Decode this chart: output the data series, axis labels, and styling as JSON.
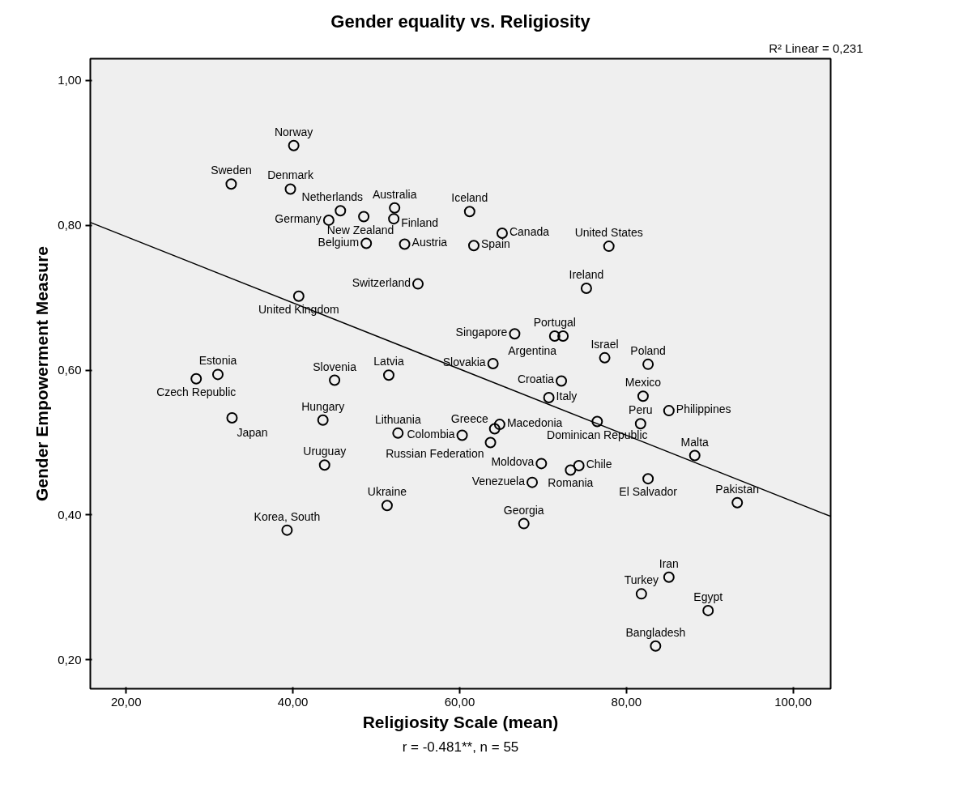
{
  "chart_data": {
    "type": "scatter",
    "title": "Gender equality vs. Religiosity",
    "xlabel": "Religiosity Scale (mean)",
    "ylabel": "Gender Empowerment Measure",
    "annotations": [
      "R² Linear = 0,231",
      "r = -0.481**, n = 55"
    ],
    "xlim": [
      15.7,
      104.5
    ],
    "ylim": [
      0.16,
      1.03
    ],
    "xticks": [
      {
        "value": 20,
        "label": "20,00"
      },
      {
        "value": 40,
        "label": "40,00"
      },
      {
        "value": 60,
        "label": "60,00"
      },
      {
        "value": 80,
        "label": "80,00"
      },
      {
        "value": 100,
        "label": "100,00"
      }
    ],
    "yticks": [
      {
        "value": 0.2,
        "label": "0,20"
      },
      {
        "value": 0.4,
        "label": "0,40"
      },
      {
        "value": 0.6,
        "label": "0,60"
      },
      {
        "value": 0.8,
        "label": "0,80"
      },
      {
        "value": 1.0,
        "label": "1,00"
      }
    ],
    "grid": false,
    "marker": "circle",
    "series": [
      {
        "color": "#000000",
        "x": [
          40.1,
          32.6,
          39.7,
          45.7,
          44.3,
          48.5,
          52.2,
          52.1,
          61.2,
          48.8,
          53.4,
          61.7,
          65.1,
          77.9,
          55.0,
          40.7,
          75.2,
          66.6,
          71.4,
          72.4,
          77.4,
          82.6,
          28.4,
          31.0,
          45.0,
          51.5,
          32.7,
          43.6,
          52.6,
          60.3,
          43.8,
          51.3,
          39.3,
          64.0,
          72.2,
          70.7,
          82.0,
          81.7,
          85.1,
          64.8,
          64.2,
          76.5,
          63.7,
          88.2,
          69.8,
          74.3,
          73.3,
          82.6,
          68.7,
          93.3,
          67.7,
          85.1,
          81.8,
          89.8,
          83.5
        ],
        "values": [
          0.91,
          0.857,
          0.85,
          0.82,
          0.807,
          0.812,
          0.824,
          0.809,
          0.819,
          0.775,
          0.774,
          0.772,
          0.789,
          0.771,
          0.719,
          0.702,
          0.713,
          0.65,
          0.647,
          0.647,
          0.617,
          0.608,
          0.588,
          0.594,
          0.586,
          0.593,
          0.534,
          0.531,
          0.513,
          0.51,
          0.469,
          0.413,
          0.379,
          0.609,
          0.585,
          0.562,
          0.564,
          0.526,
          0.544,
          0.525,
          0.519,
          0.529,
          0.5,
          0.482,
          0.471,
          0.468,
          0.462,
          0.45,
          0.445,
          0.417,
          0.388,
          0.314,
          0.291,
          0.268,
          0.219
        ],
        "value_labels": [
          "Norway",
          "Sweden",
          "Denmark",
          "Netherlands",
          "Germany",
          "New Zealand",
          "Australia",
          "Finland",
          "Iceland",
          "Belgium",
          "Austria",
          "Spain",
          "Canada",
          "United States",
          "Switzerland",
          "United Kingdom",
          "Ireland",
          "Singapore",
          "Portugal",
          "Argentina",
          "Israel",
          "Poland",
          "Czech Republic",
          "Estonia",
          "Slovenia",
          "Latvia",
          "Japan",
          "Hungary",
          "Lithuania",
          "Colombia",
          "Uruguay",
          "Ukraine",
          "Korea, South",
          "Slovakia",
          "Croatia",
          "Italy",
          "Mexico",
          "Peru",
          "Philippines",
          "Macedonia",
          "Greece",
          "Dominican Republic",
          "Russian Federation",
          "Malta",
          "Moldova",
          "Chile",
          "Romania",
          "El Salvador",
          "Venezuela",
          "Pakistan",
          "Georgia",
          "Iran",
          "Turkey",
          "Egypt",
          "Bangladesh"
        ]
      },
      {
        "type": "line",
        "marker": "none",
        "color": "#000000",
        "x": [
          15.7,
          104.5
        ],
        "values": [
          0.804,
          0.398
        ]
      }
    ]
  }
}
